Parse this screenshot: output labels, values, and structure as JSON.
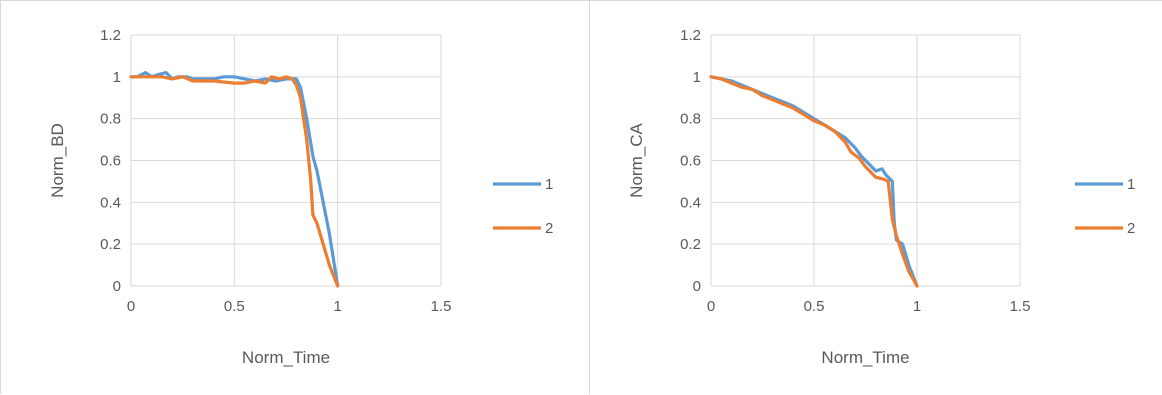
{
  "chart_data": [
    {
      "type": "line",
      "xlabel": "Norm_Time",
      "ylabel": "Norm_BD",
      "xlim": [
        0,
        1.5
      ],
      "ylim": [
        0,
        1.2
      ],
      "xticks": [
        0,
        0.5,
        1,
        1.5
      ],
      "yticks": [
        0,
        0.2,
        0.4,
        0.6,
        0.8,
        1,
        1.2
      ],
      "grid": true,
      "legend": "right",
      "series": [
        {
          "name": "1",
          "color": "#5B9BD5",
          "points": [
            [
              0,
              1.0
            ],
            [
              0.03,
              1.0
            ],
            [
              0.07,
              1.02
            ],
            [
              0.1,
              1.0
            ],
            [
              0.13,
              1.01
            ],
            [
              0.17,
              1.02
            ],
            [
              0.2,
              0.99
            ],
            [
              0.23,
              1.0
            ],
            [
              0.27,
              1.0
            ],
            [
              0.3,
              0.99
            ],
            [
              0.35,
              0.99
            ],
            [
              0.4,
              0.99
            ],
            [
              0.45,
              1.0
            ],
            [
              0.5,
              1.0
            ],
            [
              0.55,
              0.99
            ],
            [
              0.6,
              0.98
            ],
            [
              0.65,
              0.99
            ],
            [
              0.7,
              0.98
            ],
            [
              0.75,
              0.99
            ],
            [
              0.8,
              0.99
            ],
            [
              0.82,
              0.95
            ],
            [
              0.85,
              0.8
            ],
            [
              0.88,
              0.62
            ],
            [
              0.9,
              0.55
            ],
            [
              0.93,
              0.4
            ],
            [
              0.96,
              0.25
            ],
            [
              1.0,
              0.0
            ]
          ]
        },
        {
          "name": "2",
          "color": "#ED7D31",
          "points": [
            [
              0,
              1.0
            ],
            [
              0.05,
              1.0
            ],
            [
              0.1,
              1.0
            ],
            [
              0.15,
              1.0
            ],
            [
              0.2,
              0.99
            ],
            [
              0.25,
              1.0
            ],
            [
              0.3,
              0.98
            ],
            [
              0.4,
              0.98
            ],
            [
              0.5,
              0.97
            ],
            [
              0.55,
              0.97
            ],
            [
              0.6,
              0.98
            ],
            [
              0.65,
              0.97
            ],
            [
              0.68,
              1.0
            ],
            [
              0.72,
              0.99
            ],
            [
              0.75,
              1.0
            ],
            [
              0.78,
              0.99
            ],
            [
              0.8,
              0.96
            ],
            [
              0.82,
              0.9
            ],
            [
              0.85,
              0.7
            ],
            [
              0.87,
              0.5
            ],
            [
              0.88,
              0.34
            ],
            [
              0.9,
              0.3
            ],
            [
              0.93,
              0.2
            ],
            [
              0.96,
              0.1
            ],
            [
              1.0,
              0.0
            ]
          ]
        }
      ]
    },
    {
      "type": "line",
      "xlabel": "Norm_Time",
      "ylabel": "Norm_CA",
      "xlim": [
        0,
        1.5
      ],
      "ylim": [
        0,
        1.2
      ],
      "xticks": [
        0,
        0.5,
        1,
        1.5
      ],
      "yticks": [
        0,
        0.2,
        0.4,
        0.6,
        0.8,
        1,
        1.2
      ],
      "grid": true,
      "legend": "right",
      "series": [
        {
          "name": "1",
          "color": "#5B9BD5",
          "points": [
            [
              0,
              1.0
            ],
            [
              0.05,
              0.99
            ],
            [
              0.1,
              0.98
            ],
            [
              0.15,
              0.96
            ],
            [
              0.2,
              0.94
            ],
            [
              0.25,
              0.92
            ],
            [
              0.3,
              0.9
            ],
            [
              0.35,
              0.88
            ],
            [
              0.4,
              0.86
            ],
            [
              0.45,
              0.83
            ],
            [
              0.5,
              0.8
            ],
            [
              0.55,
              0.77
            ],
            [
              0.6,
              0.74
            ],
            [
              0.65,
              0.71
            ],
            [
              0.68,
              0.68
            ],
            [
              0.7,
              0.66
            ],
            [
              0.73,
              0.62
            ],
            [
              0.76,
              0.59
            ],
            [
              0.8,
              0.55
            ],
            [
              0.83,
              0.56
            ],
            [
              0.85,
              0.53
            ],
            [
              0.88,
              0.5
            ],
            [
              0.89,
              0.3
            ],
            [
              0.9,
              0.22
            ],
            [
              0.93,
              0.2
            ],
            [
              0.96,
              0.1
            ],
            [
              1.0,
              0.0
            ]
          ]
        },
        {
          "name": "2",
          "color": "#ED7D31",
          "points": [
            [
              0,
              1.0
            ],
            [
              0.05,
              0.99
            ],
            [
              0.1,
              0.97
            ],
            [
              0.15,
              0.95
            ],
            [
              0.2,
              0.94
            ],
            [
              0.25,
              0.91
            ],
            [
              0.3,
              0.89
            ],
            [
              0.35,
              0.87
            ],
            [
              0.4,
              0.85
            ],
            [
              0.45,
              0.82
            ],
            [
              0.5,
              0.79
            ],
            [
              0.55,
              0.77
            ],
            [
              0.6,
              0.74
            ],
            [
              0.65,
              0.69
            ],
            [
              0.68,
              0.64
            ],
            [
              0.72,
              0.61
            ],
            [
              0.75,
              0.57
            ],
            [
              0.8,
              0.52
            ],
            [
              0.84,
              0.51
            ],
            [
              0.86,
              0.5
            ],
            [
              0.88,
              0.32
            ],
            [
              0.9,
              0.24
            ],
            [
              0.93,
              0.15
            ],
            [
              0.96,
              0.07
            ],
            [
              1.0,
              0.0
            ]
          ]
        }
      ]
    }
  ]
}
